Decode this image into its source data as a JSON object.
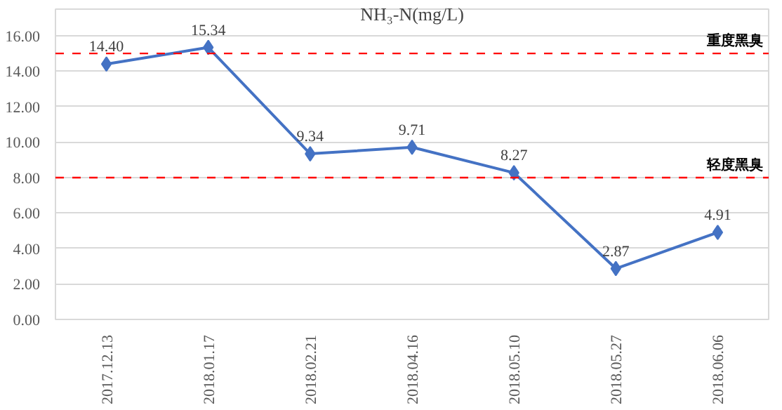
{
  "chart_data": {
    "type": "line",
    "title": "NH₃-N(mg/L)",
    "categories": [
      "2017.12.13",
      "2018.01.17",
      "2018.02.21",
      "2018.04.16",
      "2018.05.10",
      "2018.05.27",
      "2018.06.06"
    ],
    "series": [
      {
        "color": "#4472c4",
        "values": [
          14.4,
          15.34,
          9.34,
          9.71,
          8.27,
          2.87,
          4.91
        ],
        "value_labels": [
          "14.40",
          "15.34",
          "9.34",
          "9.71",
          "8.27",
          "2.87",
          "4.91"
        ]
      }
    ],
    "ylim": [
      0,
      17.5
    ],
    "yticks": [
      {
        "value": 0,
        "label": "0.00"
      },
      {
        "value": 2,
        "label": "2.00"
      },
      {
        "value": 4,
        "label": "4.00"
      },
      {
        "value": 6,
        "label": "6.00"
      },
      {
        "value": 8,
        "label": "8.00"
      },
      {
        "value": 10,
        "label": "10.00"
      },
      {
        "value": 12,
        "label": "12.00"
      },
      {
        "value": 14,
        "label": "14.00"
      },
      {
        "value": 16,
        "label": "16.00"
      }
    ],
    "ref_lines": [
      {
        "axis": "y",
        "value": 15,
        "label": "重度黑臭",
        "color": "#ff0000",
        "line_style": "dashed"
      },
      {
        "axis": "y",
        "value": 8,
        "label": "轻度黑臭",
        "color": "#ff0000",
        "line_style": "dashed"
      }
    ],
    "grid": "y",
    "marker": "diamond",
    "line_style": "solid"
  }
}
